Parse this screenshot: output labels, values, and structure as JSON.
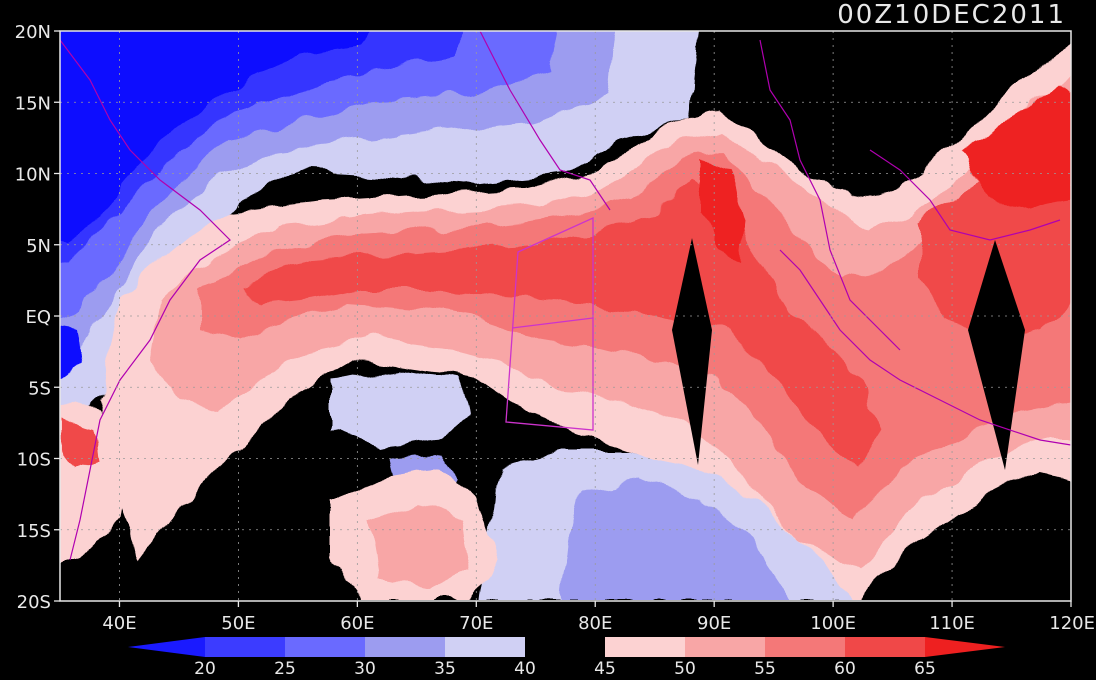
{
  "map": {
    "valid_time": "00Z10DEC2011",
    "lon_range": [
      35,
      120
    ],
    "lat_range": [
      -20,
      20
    ],
    "lat_ticks": [
      {
        "value": 20,
        "label": "20N"
      },
      {
        "value": 15,
        "label": "15N"
      },
      {
        "value": 10,
        "label": "10N"
      },
      {
        "value": 5,
        "label": "5N"
      },
      {
        "value": 0,
        "label": "EQ"
      },
      {
        "value": -5,
        "label": "5S"
      },
      {
        "value": -10,
        "label": "10S"
      },
      {
        "value": -15,
        "label": "15S"
      },
      {
        "value": -20,
        "label": "20S"
      }
    ],
    "lon_ticks": [
      {
        "value": 40,
        "label": "40E"
      },
      {
        "value": 50,
        "label": "50E"
      },
      {
        "value": 60,
        "label": "60E"
      },
      {
        "value": 70,
        "label": "70E"
      },
      {
        "value": 80,
        "label": "80E"
      },
      {
        "value": 90,
        "label": "90E"
      },
      {
        "value": 100,
        "label": "100E"
      },
      {
        "value": 110,
        "label": "110E"
      },
      {
        "value": 120,
        "label": "120E"
      }
    ],
    "grid": true,
    "coastline_color": "#b000b0",
    "outline_region_color": "#cc33cc"
  },
  "colorbar": {
    "labels": [
      "20",
      "25",
      "30",
      "35",
      "40",
      "45",
      "50",
      "55",
      "60",
      "65"
    ],
    "colors": [
      "#1a1aff",
      "#3c3cff",
      "#6a6aff",
      "#9c9cf0",
      "#d0d0f4",
      "#000000",
      "#fcd2d2",
      "#f8a6a6",
      "#f47878",
      "#f04848",
      "#ee2020"
    ]
  },
  "palette": {
    "blue_extreme": "#0a0aff",
    "blue_dark": "#3535ff",
    "blue_mid": "#6a6aff",
    "blue_light": "#9c9cf0",
    "blue_pale": "#d0d0f4",
    "neutral": "#000000",
    "red_pale": "#fcd2d2",
    "red_light": "#f8a6a6",
    "red_mid": "#f47878",
    "red_dark": "#f04848",
    "red_extreme": "#ee2020"
  }
}
